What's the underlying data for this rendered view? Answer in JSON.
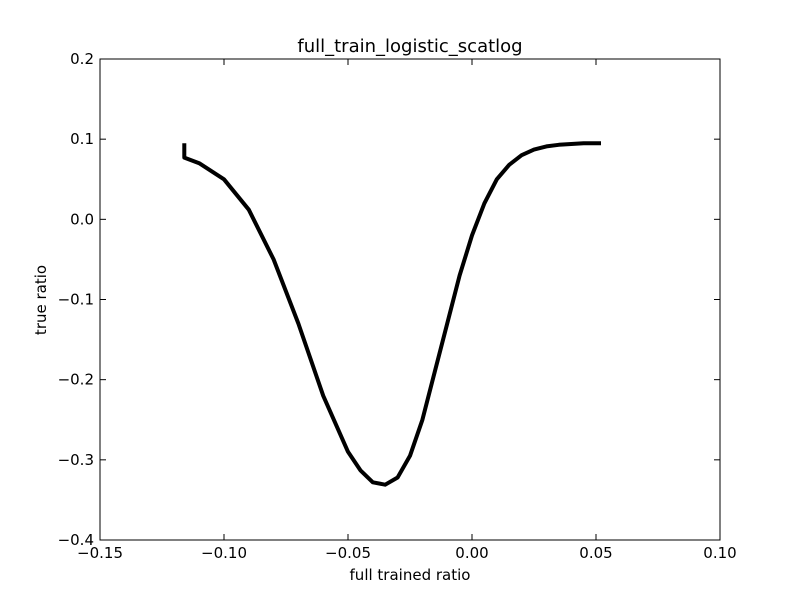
{
  "chart_data": {
    "type": "line",
    "title": "full_train_logistic_scatlog",
    "xlabel": "full trained ratio",
    "ylabel": "true ratio",
    "xlim": [
      -0.15,
      0.1
    ],
    "ylim": [
      -0.4,
      0.2
    ],
    "xticks": [
      -0.15,
      -0.1,
      -0.05,
      0.0,
      0.05,
      0.1
    ],
    "xtick_labels": [
      "−0.15",
      "−0.10",
      "−0.05",
      "0.00",
      "0.05",
      "0.10"
    ],
    "yticks": [
      -0.4,
      -0.3,
      -0.2,
      -0.1,
      0.0,
      0.1,
      0.2
    ],
    "ytick_labels": [
      "−0.4",
      "−0.3",
      "−0.2",
      "−0.1",
      "0.0",
      "0.1",
      "0.2"
    ],
    "grid": false,
    "line_color": "#000000",
    "series": [
      {
        "x": [
          -0.116,
          -0.116,
          -0.11,
          -0.1,
          -0.09,
          -0.08,
          -0.07,
          -0.06,
          -0.05,
          -0.045,
          -0.04,
          -0.035,
          -0.03,
          -0.025,
          -0.02,
          -0.015,
          -0.01,
          -0.005,
          0.0,
          0.005,
          0.01,
          0.015,
          0.02,
          0.025,
          0.03,
          0.035,
          0.04,
          0.045,
          0.05,
          0.052
        ],
        "y": [
          0.095,
          0.077,
          0.07,
          0.05,
          0.012,
          -0.05,
          -0.13,
          -0.22,
          -0.29,
          -0.313,
          -0.328,
          -0.331,
          -0.322,
          -0.295,
          -0.25,
          -0.19,
          -0.13,
          -0.07,
          -0.02,
          0.02,
          0.05,
          0.068,
          0.08,
          0.087,
          0.091,
          0.093,
          0.094,
          0.095,
          0.095,
          0.095
        ]
      }
    ]
  }
}
